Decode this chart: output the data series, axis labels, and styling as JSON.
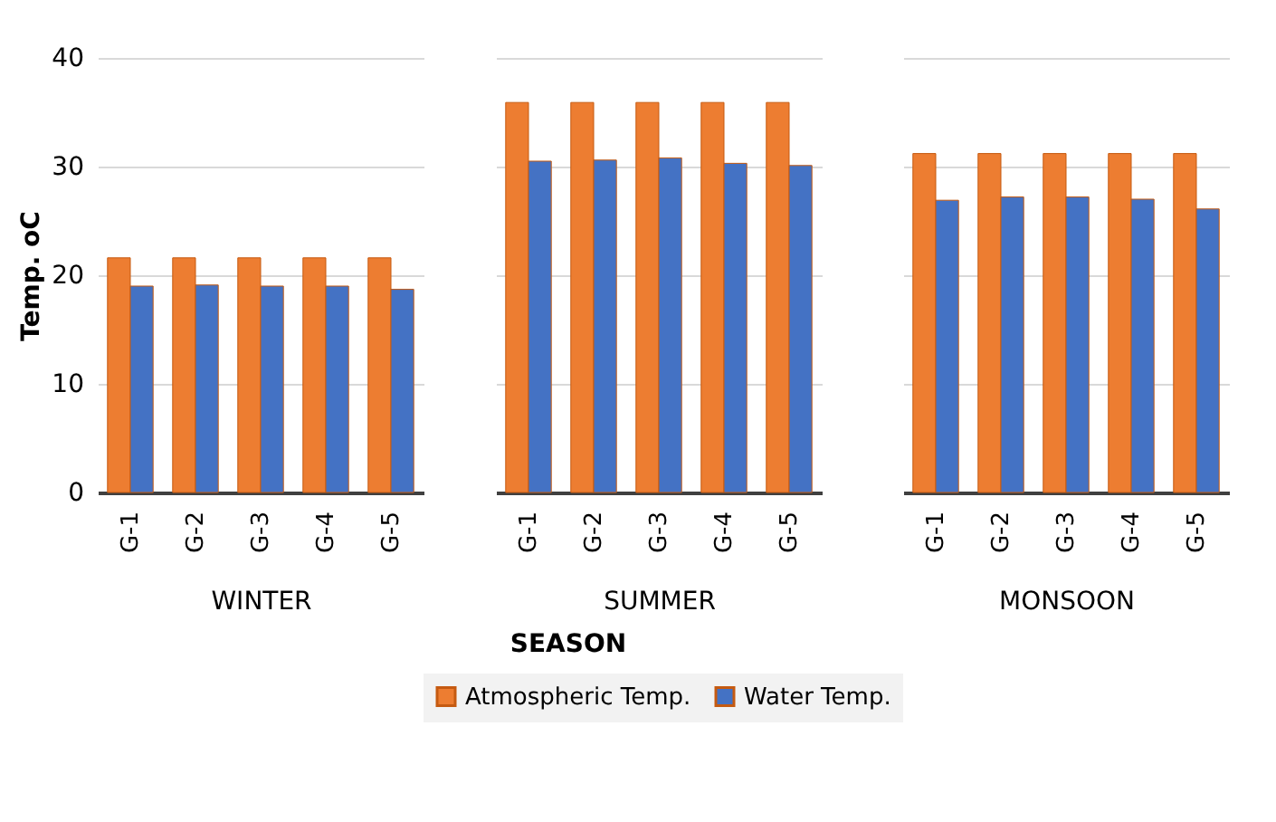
{
  "chart_data": [
    {
      "type": "bar",
      "categories": [
        "G-1",
        "G-2",
        "G-3",
        "G-4",
        "G-5"
      ],
      "xlabel": "WINTER",
      "ylabel": "Temp. oC",
      "ylim": [
        0,
        40
      ],
      "yticks": [
        0,
        10,
        20,
        30,
        40
      ],
      "grid": "y",
      "series": [
        {
          "color": "#ed7d31",
          "values": [
            21.6,
            21.6,
            21.6,
            21.6,
            21.6
          ]
        },
        {
          "color": "#4472c4",
          "values": [
            19.0,
            19.1,
            19.0,
            19.0,
            18.7
          ]
        }
      ]
    },
    {
      "type": "bar",
      "categories": [
        "G-1",
        "G-2",
        "G-3",
        "G-4",
        "G-5"
      ],
      "xlabel": "SUMMER",
      "ylim": [
        0,
        40
      ],
      "yticks": [
        0,
        10,
        20,
        30,
        40
      ],
      "tick_labels": "x",
      "grid": "y",
      "legend": "bottom",
      "annotations": [
        "SEASON"
      ],
      "series": [
        {
          "name": "Atmospheric Temp.",
          "color": "#ed7d31",
          "values": [
            35.9,
            35.9,
            35.9,
            35.9,
            35.9
          ]
        },
        {
          "name": "Water Temp.",
          "color": "#4472c4",
          "values": [
            30.5,
            30.6,
            30.8,
            30.3,
            30.1
          ]
        }
      ]
    },
    {
      "type": "bar",
      "categories": [
        "G-1",
        "G-2",
        "G-3",
        "G-4",
        "G-5"
      ],
      "xlabel": "MONSOON",
      "ylim": [
        0,
        40
      ],
      "yticks": [
        0,
        10,
        20,
        30,
        40
      ],
      "tick_labels": "x",
      "grid": "y",
      "series": [
        {
          "color": "#ed7d31",
          "values": [
            31.2,
            31.2,
            31.2,
            31.2,
            31.2
          ]
        },
        {
          "color": "#4472c4",
          "values": [
            26.9,
            27.2,
            27.2,
            27.0,
            26.1
          ]
        }
      ]
    }
  ]
}
